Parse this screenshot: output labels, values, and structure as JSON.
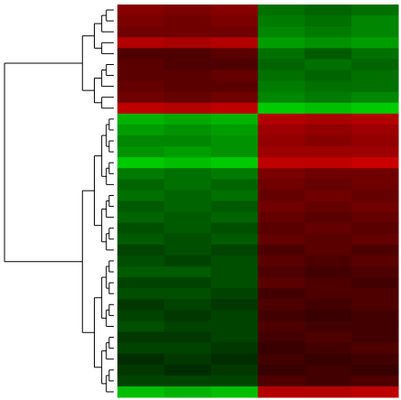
{
  "chart_data": {
    "type": "heatmap",
    "zlim": [
      -1,
      1
    ],
    "colorscale": [
      "#00e000",
      "#000000",
      "#e00000"
    ],
    "z": [
      [
        0.6,
        0.55,
        0.6,
        -0.5,
        -0.45,
        -0.5
      ],
      [
        0.55,
        0.5,
        0.55,
        -0.55,
        -0.5,
        -0.6
      ],
      [
        0.5,
        0.5,
        0.5,
        -0.6,
        -0.55,
        -0.6
      ],
      [
        0.8,
        0.75,
        0.8,
        -0.7,
        -0.65,
        -0.7
      ],
      [
        0.35,
        0.35,
        0.4,
        -0.5,
        -0.4,
        -0.5
      ],
      [
        0.4,
        0.35,
        0.35,
        -0.45,
        -0.5,
        -0.45
      ],
      [
        0.4,
        0.4,
        0.45,
        -0.5,
        -0.45,
        -0.5
      ],
      [
        0.45,
        0.4,
        0.4,
        -0.55,
        -0.5,
        -0.5
      ],
      [
        0.5,
        0.45,
        0.5,
        -0.6,
        -0.55,
        -0.6
      ],
      [
        0.85,
        0.8,
        0.85,
        -0.9,
        -0.85,
        -0.9
      ],
      [
        -0.8,
        -0.75,
        -0.8,
        0.8,
        0.75,
        0.8
      ],
      [
        -0.7,
        -0.65,
        -0.7,
        0.7,
        0.65,
        0.7
      ],
      [
        -0.6,
        -0.6,
        -0.65,
        0.65,
        0.6,
        0.65
      ],
      [
        -0.65,
        -0.7,
        -0.65,
        0.7,
        0.7,
        0.7
      ],
      [
        -0.9,
        -0.85,
        -0.9,
        0.85,
        0.85,
        0.9
      ],
      [
        -0.55,
        -0.5,
        -0.55,
        0.55,
        0.5,
        0.5
      ],
      [
        -0.45,
        -0.5,
        -0.45,
        0.5,
        0.45,
        0.5
      ],
      [
        -0.5,
        -0.45,
        -0.5,
        0.45,
        0.5,
        0.45
      ],
      [
        -0.4,
        -0.45,
        -0.4,
        0.5,
        0.45,
        0.5
      ],
      [
        -0.45,
        -0.4,
        -0.45,
        0.45,
        0.4,
        0.45
      ],
      [
        -0.35,
        -0.4,
        -0.35,
        0.4,
        0.45,
        0.4
      ],
      [
        -0.4,
        -0.35,
        -0.4,
        0.45,
        0.4,
        0.45
      ],
      [
        -0.3,
        -0.35,
        -0.3,
        0.35,
        0.4,
        0.35
      ],
      [
        -0.35,
        -0.3,
        -0.35,
        0.4,
        0.35,
        0.4
      ],
      [
        -0.4,
        -0.4,
        -0.35,
        0.35,
        0.3,
        0.35
      ],
      [
        -0.3,
        -0.3,
        -0.35,
        0.4,
        0.35,
        0.3
      ],
      [
        -0.35,
        -0.35,
        -0.3,
        0.3,
        0.35,
        0.35
      ],
      [
        -0.25,
        -0.3,
        -0.25,
        0.35,
        0.3,
        0.35
      ],
      [
        -0.3,
        -0.25,
        -0.3,
        0.3,
        0.25,
        0.3
      ],
      [
        -0.35,
        -0.3,
        -0.3,
        0.35,
        0.3,
        0.3
      ],
      [
        -0.25,
        -0.25,
        -0.3,
        0.3,
        0.35,
        0.3
      ],
      [
        -0.3,
        -0.3,
        -0.25,
        0.25,
        0.3,
        0.35
      ],
      [
        -0.2,
        -0.25,
        -0.2,
        0.3,
        0.25,
        0.3
      ],
      [
        -0.25,
        -0.2,
        -0.25,
        0.25,
        0.3,
        0.25
      ],
      [
        -0.3,
        -0.3,
        -0.3,
        0.35,
        0.3,
        0.35
      ],
      [
        -0.85,
        -0.8,
        -0.85,
        0.8,
        0.8,
        0.85
      ]
    ]
  }
}
